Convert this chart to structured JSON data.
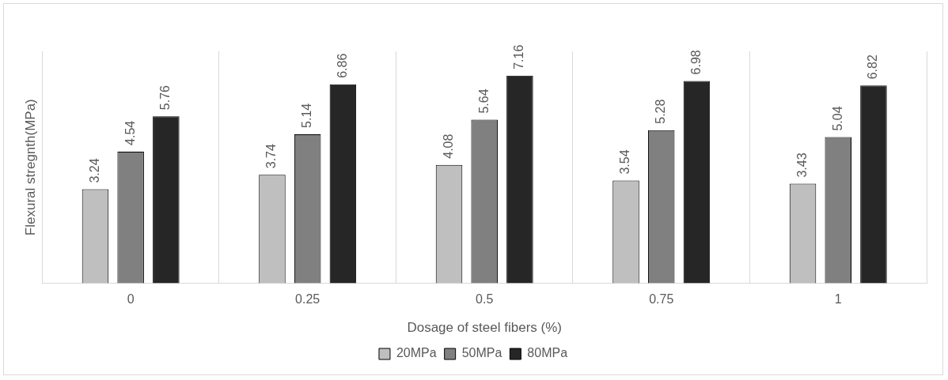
{
  "chart_data": {
    "type": "bar",
    "xlabel": "Dosage of steel fibers (%)",
    "ylabel": "Flexural stregnth(MPa)",
    "categories": [
      "0",
      "0.25",
      "0.5",
      "0.75",
      "1"
    ],
    "series": [
      {
        "name": "20MPa",
        "color": "#bfbfbf",
        "values": [
          3.24,
          3.74,
          4.08,
          3.54,
          3.43
        ]
      },
      {
        "name": "50MPa",
        "color": "#808080",
        "values": [
          4.54,
          5.14,
          5.64,
          5.28,
          5.04
        ]
      },
      {
        "name": "80MPa",
        "color": "#262626",
        "values": [
          5.76,
          6.86,
          7.16,
          6.98,
          6.82
        ]
      }
    ],
    "ylim": [
      0,
      8
    ],
    "tick_labels": "x",
    "grid": "x",
    "legend": "bottom",
    "data_labels": true
  }
}
